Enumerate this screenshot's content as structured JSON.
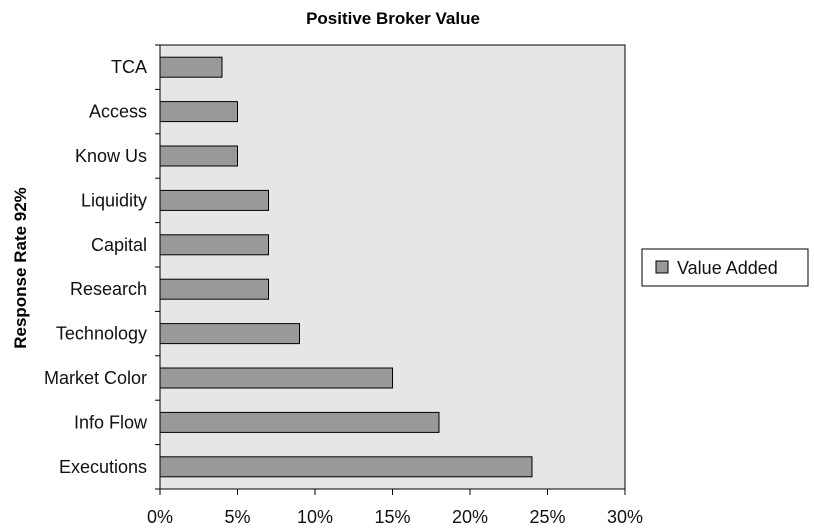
{
  "chart_data": {
    "type": "bar",
    "orientation": "horizontal",
    "title": "Positive Broker Value",
    "xlabel": "",
    "ylabel": "Response Rate 92%",
    "categories": [
      "TCA",
      "Access",
      "Know Us",
      "Liquidity",
      "Capital",
      "Research",
      "Technology",
      "Market Color",
      "Info Flow",
      "Executions"
    ],
    "series": [
      {
        "name": "Value Added",
        "values": [
          4,
          5,
          5,
          7,
          7,
          7,
          9,
          15,
          18,
          24
        ],
        "color": "#999999"
      }
    ],
    "xlim": [
      0,
      30
    ],
    "x_ticks": [
      0,
      5,
      10,
      15,
      20,
      25,
      30
    ],
    "tick_format": "{v}%",
    "legend_position": "right",
    "plot_background": "#e6e6e6",
    "grid": false
  }
}
